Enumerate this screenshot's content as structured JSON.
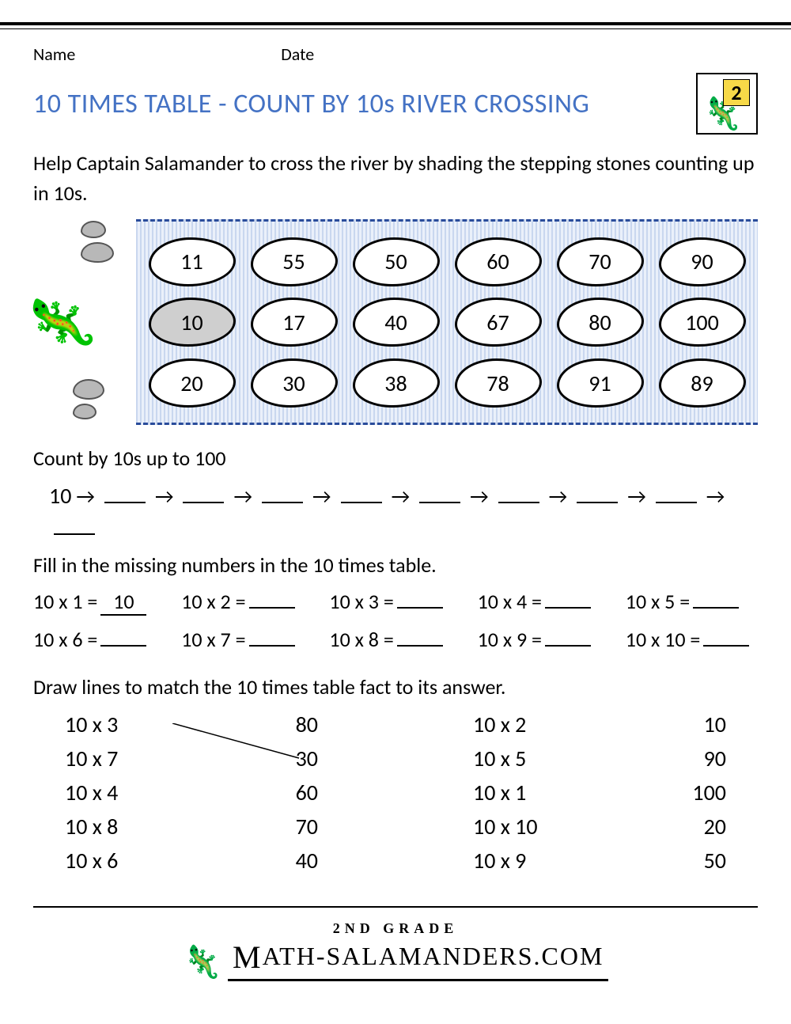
{
  "meta": {
    "name_label": "Name",
    "date_label": "Date"
  },
  "title": "10 TIMES TABLE - COUNT BY 10s RIVER CROSSING",
  "badge": {
    "number": "2"
  },
  "instruction": "Help Captain Salamander to cross the river by shading the stepping stones counting up in 10s.",
  "river": {
    "rows": [
      [
        "11",
        "55",
        "50",
        "60",
        "70",
        "90"
      ],
      [
        "10",
        "17",
        "40",
        "67",
        "80",
        "100"
      ],
      [
        "20",
        "30",
        "38",
        "78",
        "91",
        "89"
      ]
    ],
    "shaded": [
      [
        1,
        0
      ]
    ],
    "border_color": "#2a4c9b",
    "water_colors": [
      "#c9d7ef",
      "#eaf0fa"
    ],
    "stone_fill": "#ffffff",
    "stone_shaded_fill": "#cfcfcf",
    "stone_fontsize": 28
  },
  "count_section": {
    "label": "Count by 10s up to 100",
    "start": "10",
    "blanks": 9,
    "arrow": "→"
  },
  "fill_section": {
    "label": "Fill in the missing numbers in the 10 times table.",
    "cells": [
      {
        "q": "10 x 1 =",
        "a": "10"
      },
      {
        "q": "10 x 2 =",
        "a": ""
      },
      {
        "q": "10 x 3 =",
        "a": ""
      },
      {
        "q": "10 x 4 =",
        "a": ""
      },
      {
        "q": "10 x 5 =",
        "a": ""
      },
      {
        "q": "10 x 6 =",
        "a": ""
      },
      {
        "q": "10 x 7 =",
        "a": ""
      },
      {
        "q": "10 x 8 =",
        "a": ""
      },
      {
        "q": "10 x 9 =",
        "a": ""
      },
      {
        "q": "10 x 10 =",
        "a": ""
      }
    ]
  },
  "match_section": {
    "label": "Draw lines to match the 10 times table fact to its answer.",
    "left": {
      "q": [
        "10 x 3",
        "10 x 7",
        "10 x 4",
        "10 x 8",
        "10 x 6"
      ],
      "a": [
        "80",
        "30",
        "60",
        "70",
        "40"
      ]
    },
    "right": {
      "q": [
        "10 x 2",
        "10 x 5",
        "10 x 1",
        "10 x 10",
        "10 x 9"
      ],
      "a": [
        "10",
        "90",
        "100",
        "20",
        "50"
      ]
    },
    "drawn_line": {
      "from": "10 x 3",
      "to": "30"
    }
  },
  "footer": {
    "grade": "2ND GRADE",
    "site": "ATH-SALAMANDERS.COM",
    "prefix_icon": "🦎"
  },
  "colors": {
    "title": "#4472c4",
    "text": "#000000",
    "background": "#ffffff"
  },
  "typography": {
    "body_fontsize": 26,
    "title_fontsize": 34
  }
}
